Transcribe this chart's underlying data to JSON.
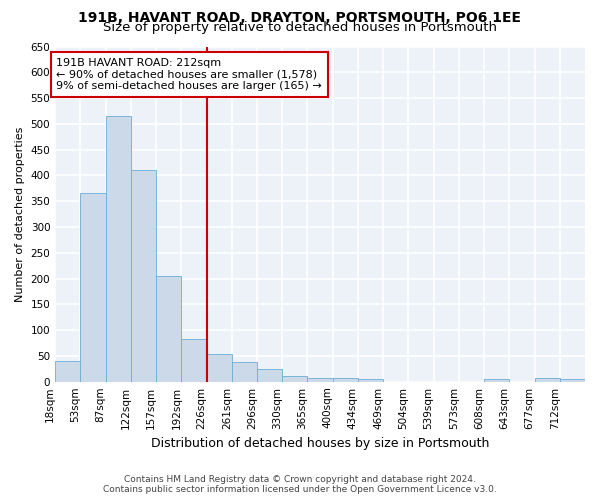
{
  "title1": "191B, HAVANT ROAD, DRAYTON, PORTSMOUTH, PO6 1EE",
  "title2": "Size of property relative to detached houses in Portsmouth",
  "xlabel": "Distribution of detached houses by size in Portsmouth",
  "ylabel": "Number of detached properties",
  "footer1": "Contains HM Land Registry data © Crown copyright and database right 2024.",
  "footer2": "Contains public sector information licensed under the Open Government Licence v3.0.",
  "annotation_line1": "191B HAVANT ROAD: 212sqm",
  "annotation_line2": "← 90% of detached houses are smaller (1,578)",
  "annotation_line3": "9% of semi-detached houses are larger (165) →",
  "bar_color": "#ccd9e8",
  "bar_edge_color": "#6baed6",
  "vline_color": "#cc0000",
  "vline_bin_index": 6,
  "categories": [
    "18sqm",
    "53sqm",
    "87sqm",
    "122sqm",
    "157sqm",
    "192sqm",
    "226sqm",
    "261sqm",
    "296sqm",
    "330sqm",
    "365sqm",
    "400sqm",
    "434sqm",
    "469sqm",
    "504sqm",
    "539sqm",
    "573sqm",
    "608sqm",
    "643sqm",
    "677sqm",
    "712sqm"
  ],
  "values": [
    40,
    365,
    515,
    410,
    205,
    83,
    53,
    38,
    25,
    11,
    8,
    8,
    5,
    0,
    0,
    0,
    0,
    5,
    0,
    7,
    5
  ],
  "ylim": [
    0,
    650
  ],
  "yticks": [
    0,
    50,
    100,
    150,
    200,
    250,
    300,
    350,
    400,
    450,
    500,
    550,
    600,
    650
  ],
  "bg_color": "#edf2f8",
  "grid_color": "white",
  "title_fontsize": 10,
  "subtitle_fontsize": 9.5,
  "annotation_fontsize": 8,
  "ylabel_fontsize": 8,
  "xlabel_fontsize": 9,
  "tick_fontsize": 7.5
}
